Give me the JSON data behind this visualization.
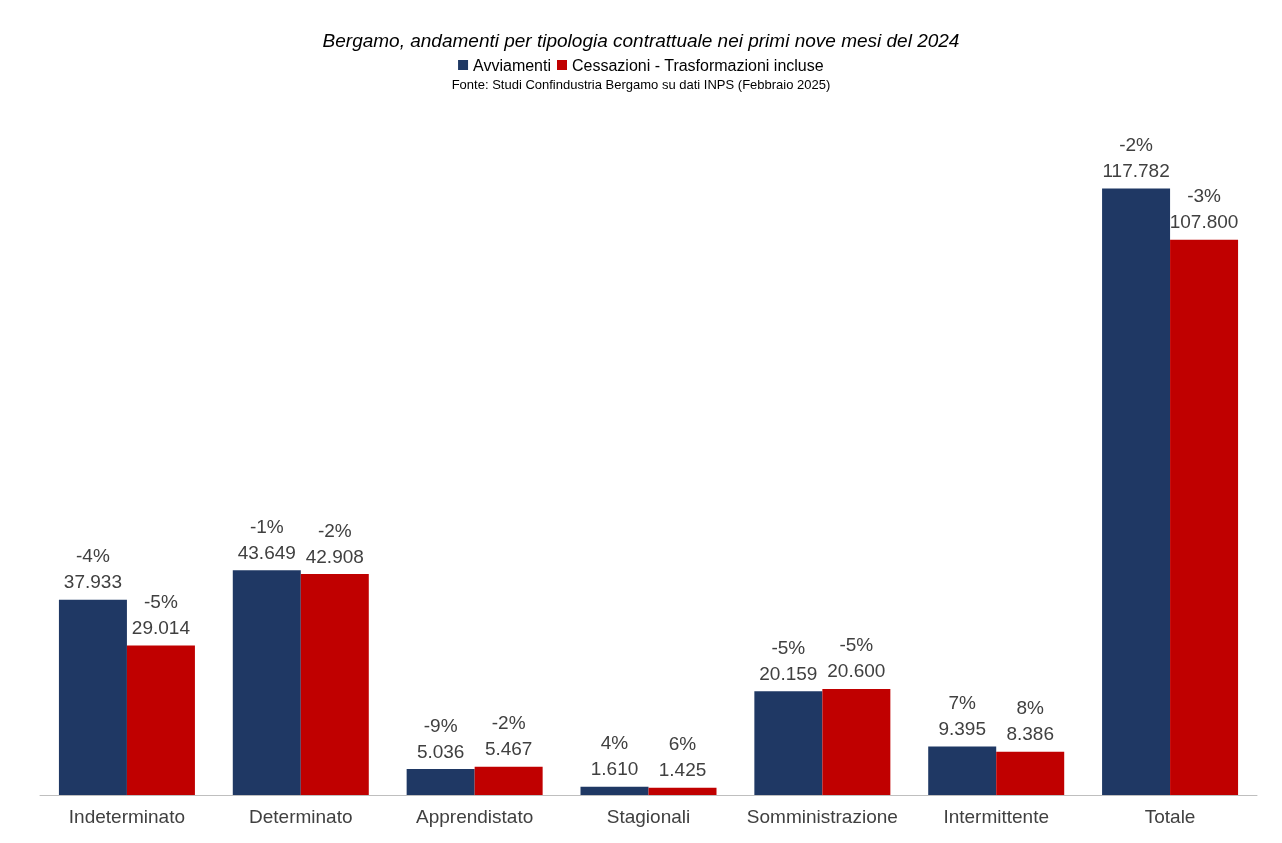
{
  "chart_data": {
    "type": "bar",
    "title": "Bergamo, andamenti per tipologia contrattuale nei primi nove mesi del 2024",
    "annotations": [
      "Fonte: Studi Confindustria Bergamo su dati INPS (Febbraio 2025)"
    ],
    "categories": [
      "Indeterminato",
      "Determinato",
      "Apprendistato",
      "Stagionali",
      "Somministrazione",
      "Intermittente",
      "Totale"
    ],
    "series": [
      {
        "name": "Avviamenti",
        "color": "#1f3864",
        "values": [
          37933,
          43649,
          5036,
          1610,
          20159,
          9395,
          117782
        ],
        "value_labels": [
          "-4%\n37.933",
          "-1%\n43.649",
          "-9%\n5.036",
          "4%\n1.610",
          "-5%\n20.159",
          "7%\n9.395",
          "-2%\n117.782"
        ]
      },
      {
        "name": "Cessazioni - Trasformazioni incluse",
        "color": "#c00000",
        "values": [
          29014,
          42908,
          5467,
          1425,
          20600,
          8386,
          107800
        ],
        "value_labels": [
          "-5%\n29.014",
          "-2%\n42.908",
          "-2%\n5.467",
          "6%\n1.425",
          "-5%\n20.600",
          "8%\n8.386",
          "-3%\n107.800"
        ]
      }
    ],
    "legend": "top"
  }
}
